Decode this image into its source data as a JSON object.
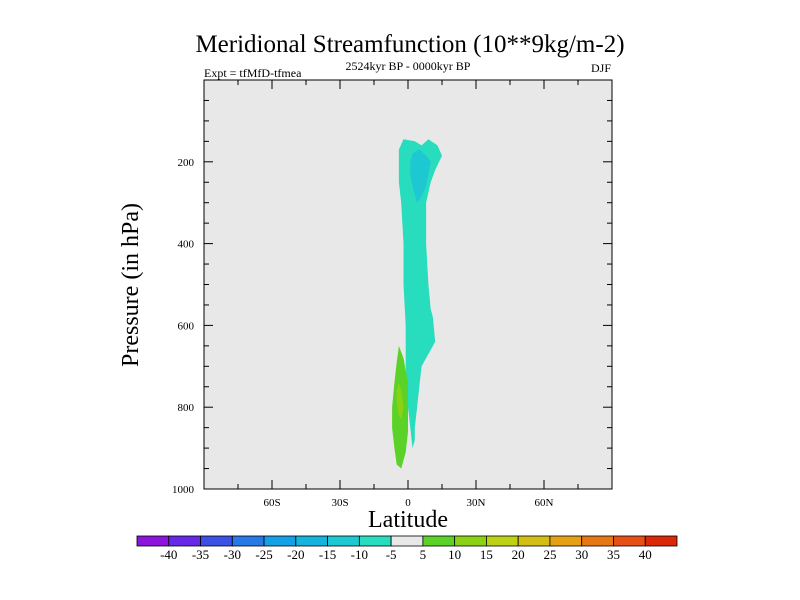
{
  "chart_data": {
    "type": "contour",
    "title": "Meridional Streamfunction (10**9kg/m-2)",
    "left_subtitle": "Expt = tfMfD-tfmea",
    "center_subtitle": "2524kyr BP - 0000kyr BP",
    "right_subtitle": "DJF",
    "xlabel": "Latitude",
    "ylabel": "Pressure (in hPa)",
    "xlim": [
      -90,
      90
    ],
    "ylim": [
      1000,
      0
    ],
    "x_ticks": [
      {
        "value": -60,
        "label": "60S"
      },
      {
        "value": -30,
        "label": "30S"
      },
      {
        "value": 0,
        "label": "0"
      },
      {
        "value": 30,
        "label": "30N"
      },
      {
        "value": 60,
        "label": "60N"
      }
    ],
    "y_ticks": [
      {
        "value": 200,
        "label": "200"
      },
      {
        "value": 400,
        "label": "400"
      },
      {
        "value": 600,
        "label": "600"
      },
      {
        "value": 800,
        "label": "800"
      },
      {
        "value": 1000,
        "label": "1000"
      }
    ],
    "background_level": "-5 to 5",
    "colorbar": {
      "levels": [
        "-40",
        "-35",
        "-30",
        "-25",
        "-20",
        "-15",
        "-10",
        "-5",
        "5",
        "10",
        "15",
        "20",
        "25",
        "30",
        "35",
        "40"
      ],
      "colors": [
        "#8c14dc",
        "#6428e6",
        "#3c50e6",
        "#2878e6",
        "#14a0e6",
        "#14b4dc",
        "#1ec8d2",
        "#28dcbe",
        "#e8e8e8",
        "#5ad228",
        "#8cd214",
        "#bed214",
        "#d2be14",
        "#e6a014",
        "#e67814",
        "#e65014",
        "#dc280a"
      ]
    },
    "regions": [
      {
        "name": "upper-negative-cell",
        "level": "-10 to -5",
        "color": "#28dcbe",
        "outline": [
          [
            -4,
            170
          ],
          [
            -2,
            145
          ],
          [
            3,
            150
          ],
          [
            6,
            160
          ],
          [
            9,
            145
          ],
          [
            13,
            160
          ],
          [
            15,
            185
          ],
          [
            12,
            220
          ],
          [
            10,
            250
          ],
          [
            8,
            300
          ],
          [
            8,
            400
          ],
          [
            9,
            500
          ],
          [
            10,
            560
          ],
          [
            11,
            580
          ],
          [
            12,
            640
          ],
          [
            10,
            660
          ],
          [
            8,
            680
          ],
          [
            6,
            700
          ],
          [
            5,
            750
          ],
          [
            4,
            800
          ],
          [
            3,
            850
          ],
          [
            3,
            880
          ],
          [
            2,
            900
          ],
          [
            1,
            850
          ],
          [
            0,
            800
          ],
          [
            -1,
            700
          ],
          [
            -1,
            600
          ],
          [
            -2,
            500
          ],
          [
            -2,
            400
          ],
          [
            -3,
            300
          ],
          [
            -4,
            250
          ],
          [
            -4,
            200
          ]
        ]
      },
      {
        "name": "upper-core",
        "level": "-15 to -10",
        "color": "#1ec8d2",
        "outline": [
          [
            2,
            180
          ],
          [
            5,
            170
          ],
          [
            8,
            185
          ],
          [
            10,
            200
          ],
          [
            9,
            230
          ],
          [
            8,
            260
          ],
          [
            6,
            285
          ],
          [
            4,
            300
          ],
          [
            3,
            280
          ],
          [
            2,
            260
          ],
          [
            1,
            230
          ],
          [
            1,
            200
          ]
        ]
      },
      {
        "name": "lower-positive-cell",
        "level": "5 to 10",
        "color": "#5ad228",
        "outline": [
          [
            -4,
            650
          ],
          [
            -2,
            680
          ],
          [
            0,
            740
          ],
          [
            0,
            800
          ],
          [
            0,
            860
          ],
          [
            -1,
            910
          ],
          [
            -3,
            950
          ],
          [
            -5,
            940
          ],
          [
            -6,
            900
          ],
          [
            -7,
            850
          ],
          [
            -7,
            800
          ],
          [
            -6,
            740
          ],
          [
            -5,
            690
          ]
        ]
      },
      {
        "name": "lower-positive-core",
        "level": "10 to 15",
        "color": "#8cd214",
        "outline": [
          [
            -4,
            740
          ],
          [
            -3,
            760
          ],
          [
            -2,
            800
          ],
          [
            -3,
            830
          ],
          [
            -4,
            820
          ],
          [
            -5,
            790
          ],
          [
            -5,
            760
          ]
        ]
      }
    ]
  }
}
